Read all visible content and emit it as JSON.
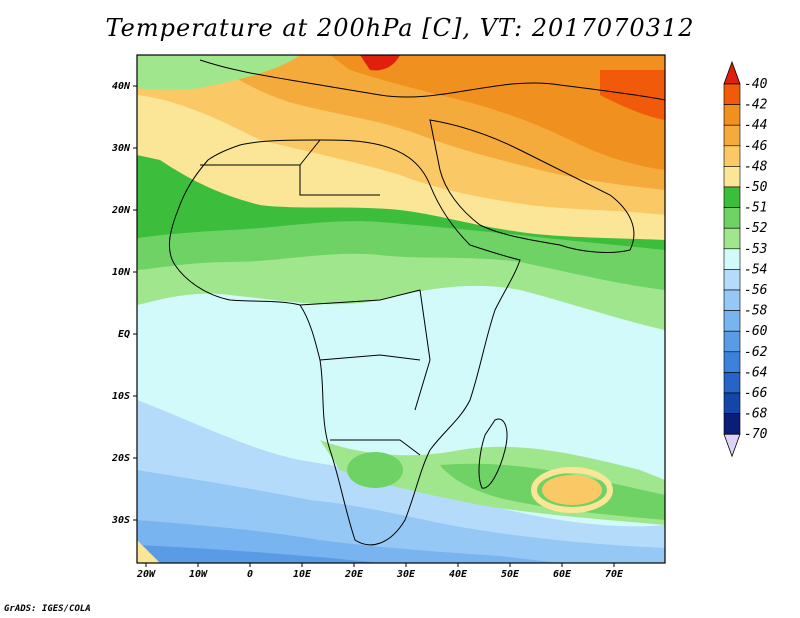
{
  "title": "Temperature at 200hPa [C], VT: 2017070312",
  "credit": "GrADS: IGES/COLA",
  "axes": {
    "lon_labels": [
      "20W",
      "10W",
      "0",
      "10E",
      "20E",
      "30E",
      "40E",
      "50E",
      "60E",
      "70E"
    ],
    "lat_labels": [
      "40N",
      "30N",
      "20N",
      "10N",
      "EQ",
      "10S",
      "20S",
      "30S"
    ]
  },
  "colorbar": {
    "labels": [
      "-40",
      "-42",
      "-44",
      "-46",
      "-48",
      "-50",
      "-51",
      "-52",
      "-53",
      "-54",
      "-56",
      "-58",
      "-60",
      "-62",
      "-64",
      "-66",
      "-68",
      "-70"
    ],
    "colors": {
      "red_dark": "#e0200c",
      "red": "#f05a0a",
      "orange_dark": "#f0901e",
      "orange": "#f5aa3c",
      "orange_light": "#fac864",
      "yellow": "#fae696",
      "green_dark": "#3cbe3c",
      "green": "#6ed264",
      "green_light": "#a0e68c",
      "cyan_light": "#d2fafa",
      "blue_light": "#b4dcfa",
      "blue1": "#96c8f5",
      "blue2": "#78b4f0",
      "blue3": "#5a9be6",
      "blue4": "#3c82dc",
      "blue5": "#2864c8",
      "blue6": "#1446aa",
      "navy": "#0a1e78",
      "lavender": "#dcd2fa"
    }
  }
}
